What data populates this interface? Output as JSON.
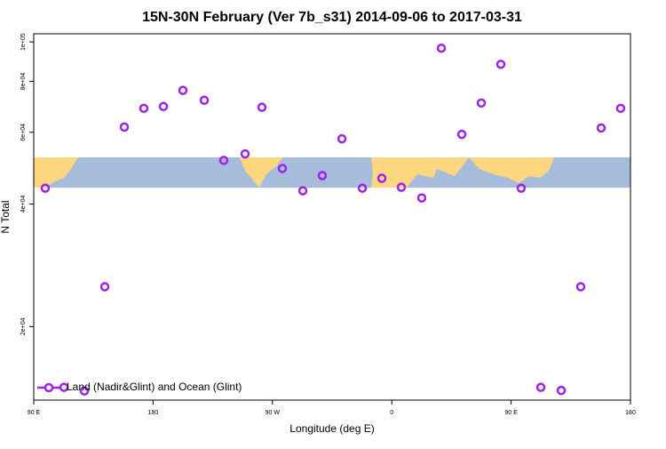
{
  "chart_data": {
    "type": "scatter",
    "title": "15N-30N February (Ver 7b_s31)   2014-09-06 to 2017-03-31",
    "x_label": "Longitude (deg E)",
    "y_label": "N Total",
    "xlim": [
      90,
      540
    ],
    "ylim": [
      13200,
      104700
    ],
    "y_scale": "log",
    "xticks": [
      {
        "value": 90,
        "label": "90 E"
      },
      {
        "value": 180,
        "label": "180"
      },
      {
        "value": 270,
        "label": "90 W"
      },
      {
        "value": 360,
        "label": "0"
      },
      {
        "value": 450,
        "label": "90 E"
      },
      {
        "value": 540,
        "label": "180"
      }
    ],
    "yticks": [
      {
        "value": 20000,
        "label": "2e+04"
      },
      {
        "value": 40000,
        "label": "4e+04"
      },
      {
        "value": 60000,
        "label": "6e+04"
      },
      {
        "value": 80000,
        "label": "8e+04"
      },
      {
        "value": 100000,
        "label": "1e+05"
      }
    ],
    "legend_position": "bottom-left",
    "series": [
      {
        "name": "Land (Nadir&Glint) and Ocean (Glint)",
        "color": "#a020f0",
        "x": [
          98.7,
          112.8,
          128.2,
          143.6,
          158.3,
          173,
          187.8,
          202.5,
          218.6,
          233.3,
          249.4,
          262.1,
          277.5,
          292.9,
          307.6,
          322.4,
          337.8,
          352.5,
          367.2,
          382.6,
          397.4,
          412.8,
          427.5,
          442.2,
          457.6,
          472.4,
          487.8,
          502.5,
          517.9,
          532.6
        ],
        "values": [
          43750,
          14190,
          13900,
          25050,
          61800,
          68700,
          69400,
          76040,
          71900,
          51200,
          53100,
          69100,
          48900,
          43100,
          46970,
          57810,
          43750,
          46250,
          43970,
          41390,
          96510,
          59300,
          70800,
          88100,
          43750,
          14190,
          13940,
          25050,
          61470,
          68700
        ]
      }
    ]
  }
}
